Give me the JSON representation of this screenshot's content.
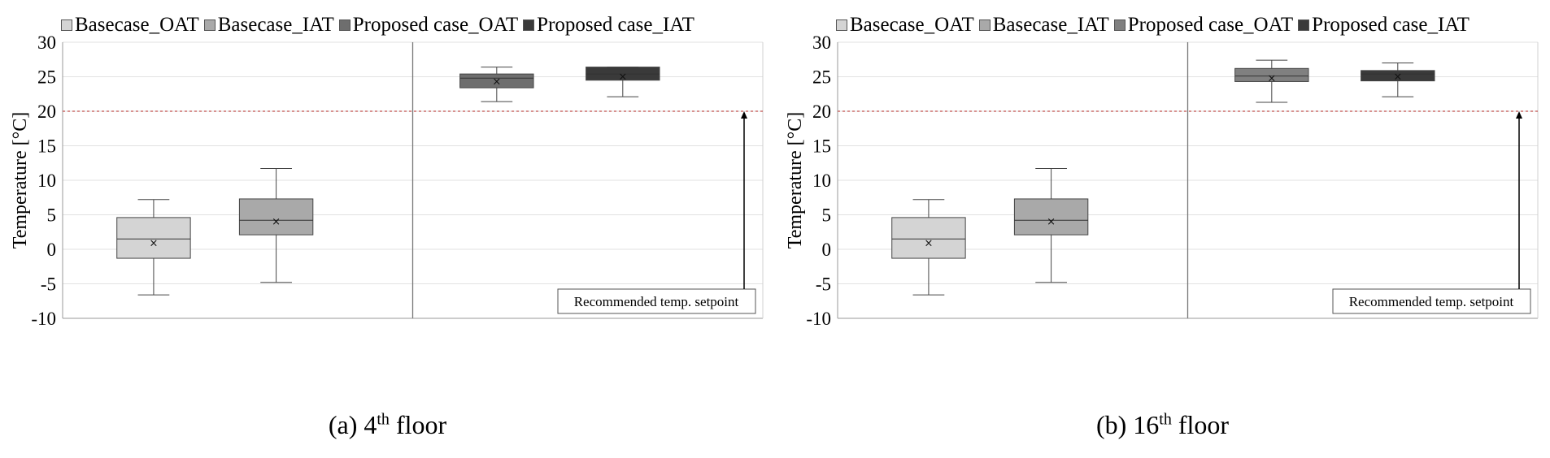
{
  "chart_data": [
    {
      "type": "box",
      "caption": {
        "prefix": "(a) 4",
        "sup": "th",
        "suffix": " floor"
      },
      "ylabel": "Temperature [°C]",
      "ylim": [
        -10,
        30
      ],
      "yticks": [
        "30",
        "25",
        "20",
        "15",
        "10",
        "5",
        "0",
        "-5",
        "-10"
      ],
      "grid": true,
      "legend_position": "top",
      "setpoint": {
        "value": 20,
        "label": "Recommended temp. setpoint"
      },
      "series": [
        {
          "name": "Basecase_OAT",
          "color": "#d4d4d4",
          "min": -6.6,
          "q1": -1.3,
          "median": 1.5,
          "q3": 4.6,
          "max": 7.2,
          "mean": 1.0
        },
        {
          "name": "Basecase_IAT",
          "color": "#a9a9a9",
          "min": -4.8,
          "q1": 2.1,
          "median": 4.2,
          "q3": 7.3,
          "max": 11.7,
          "mean": 4.1
        },
        {
          "name": "Proposed case_OAT",
          "color": "#6e6e6e",
          "min": 21.4,
          "q1": 23.4,
          "median": 24.8,
          "q3": 25.4,
          "max": 26.4,
          "mean": 24.4
        },
        {
          "name": "Proposed case_IAT",
          "color": "#3a3a3a",
          "min": 22.1,
          "q1": 24.5,
          "median": 25.4,
          "q3": 26.4,
          "max": 26.4,
          "mean": 25.1
        }
      ]
    },
    {
      "type": "box",
      "caption": {
        "prefix": "(b) 16",
        "sup": "th",
        "suffix": " floor"
      },
      "ylabel": "Temperature [°C]",
      "ylim": [
        -10,
        30
      ],
      "yticks": [
        "30",
        "25",
        "20",
        "15",
        "10",
        "5",
        "0",
        "-5",
        "-10"
      ],
      "grid": true,
      "legend_position": "top",
      "setpoint": {
        "value": 20,
        "label": "Recommended temp. setpoint"
      },
      "series": [
        {
          "name": "Basecase_OAT",
          "color": "#d4d4d4",
          "min": -6.6,
          "q1": -1.3,
          "median": 1.5,
          "q3": 4.6,
          "max": 7.2,
          "mean": 1.0
        },
        {
          "name": "Basecase_IAT",
          "color": "#a9a9a9",
          "min": -4.8,
          "q1": 2.1,
          "median": 4.2,
          "q3": 7.3,
          "max": 11.7,
          "mean": 4.1
        },
        {
          "name": "Proposed case_OAT",
          "color": "#808080",
          "min": 21.3,
          "q1": 24.3,
          "median": 25.1,
          "q3": 26.2,
          "max": 27.4,
          "mean": 24.9
        },
        {
          "name": "Proposed case_IAT",
          "color": "#3a3a3a",
          "min": 22.1,
          "q1": 24.4,
          "median": 25.4,
          "q3": 25.9,
          "max": 27.0,
          "mean": 25.1
        }
      ]
    }
  ]
}
